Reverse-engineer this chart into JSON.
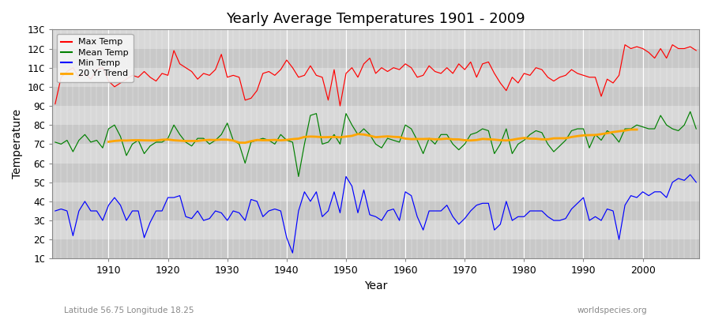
{
  "title": "Yearly Average Temperatures 1901 - 2009",
  "xlabel": "Year",
  "ylabel": "Temperature",
  "bottom_left": "Latitude 56.75 Longitude 18.25",
  "bottom_right": "worldspecies.org",
  "years": [
    1901,
    1902,
    1903,
    1904,
    1905,
    1906,
    1907,
    1908,
    1909,
    1910,
    1911,
    1912,
    1913,
    1914,
    1915,
    1916,
    1917,
    1918,
    1919,
    1920,
    1921,
    1922,
    1923,
    1924,
    1925,
    1926,
    1927,
    1928,
    1929,
    1930,
    1931,
    1932,
    1933,
    1934,
    1935,
    1936,
    1937,
    1938,
    1939,
    1940,
    1941,
    1942,
    1943,
    1944,
    1945,
    1946,
    1947,
    1948,
    1949,
    1950,
    1951,
    1952,
    1953,
    1954,
    1955,
    1956,
    1957,
    1958,
    1959,
    1960,
    1961,
    1962,
    1963,
    1964,
    1965,
    1966,
    1967,
    1968,
    1969,
    1970,
    1971,
    1972,
    1973,
    1974,
    1975,
    1976,
    1977,
    1978,
    1979,
    1980,
    1981,
    1982,
    1983,
    1984,
    1985,
    1986,
    1987,
    1988,
    1989,
    1990,
    1991,
    1992,
    1993,
    1994,
    1995,
    1996,
    1997,
    1998,
    1999,
    2000,
    2001,
    2002,
    2003,
    2004,
    2005,
    2006,
    2007,
    2008,
    2009
  ],
  "max_temp": [
    9.1,
    10.5,
    10.8,
    11.0,
    10.5,
    10.7,
    10.4,
    10.9,
    11.0,
    10.3,
    10.0,
    10.2,
    10.4,
    10.6,
    10.5,
    10.8,
    10.5,
    10.3,
    10.7,
    10.6,
    11.9,
    11.2,
    11.0,
    10.8,
    10.4,
    10.7,
    10.6,
    10.9,
    11.7,
    10.5,
    10.6,
    10.5,
    9.3,
    9.4,
    9.8,
    10.7,
    10.8,
    10.6,
    10.9,
    11.4,
    11.0,
    10.5,
    10.6,
    11.1,
    10.6,
    10.5,
    9.3,
    10.9,
    9.0,
    10.7,
    11.0,
    10.5,
    11.2,
    11.5,
    10.7,
    11.0,
    10.8,
    11.0,
    10.9,
    11.2,
    11.0,
    10.5,
    10.6,
    11.1,
    10.8,
    10.7,
    11.0,
    10.7,
    11.2,
    10.9,
    11.3,
    10.5,
    11.2,
    11.3,
    10.7,
    10.2,
    9.8,
    10.5,
    10.2,
    10.7,
    10.6,
    11.0,
    10.9,
    10.5,
    10.3,
    10.5,
    10.6,
    10.9,
    10.7,
    10.6,
    10.5,
    10.5,
    9.5,
    10.4,
    10.2,
    10.6,
    12.2,
    12.0,
    12.1,
    12.0,
    11.8,
    11.5,
    12.0,
    11.5,
    12.2,
    12.0,
    12.0,
    12.1,
    11.9
  ],
  "mean_temp": [
    7.1,
    7.0,
    7.2,
    6.6,
    7.2,
    7.5,
    7.1,
    7.2,
    6.8,
    7.8,
    8.0,
    7.4,
    6.4,
    7.0,
    7.2,
    6.5,
    6.9,
    7.1,
    7.1,
    7.3,
    8.0,
    7.5,
    7.1,
    6.9,
    7.3,
    7.3,
    7.0,
    7.2,
    7.5,
    8.1,
    7.2,
    7.0,
    6.0,
    7.1,
    7.2,
    7.3,
    7.2,
    7.0,
    7.5,
    7.2,
    7.1,
    5.3,
    7.0,
    8.5,
    8.6,
    7.0,
    7.1,
    7.5,
    7.0,
    8.6,
    8.0,
    7.5,
    7.8,
    7.5,
    7.0,
    6.8,
    7.3,
    7.2,
    7.1,
    8.0,
    7.8,
    7.2,
    6.5,
    7.3,
    7.0,
    7.5,
    7.5,
    7.0,
    6.7,
    7.0,
    7.5,
    7.6,
    7.8,
    7.7,
    6.5,
    7.0,
    7.8,
    6.5,
    7.0,
    7.2,
    7.5,
    7.7,
    7.6,
    7.0,
    6.6,
    6.9,
    7.2,
    7.7,
    7.8,
    7.8,
    6.8,
    7.5,
    7.2,
    7.7,
    7.5,
    7.1,
    7.8,
    7.8,
    8.0,
    7.9,
    7.8,
    7.8,
    8.5,
    8.0,
    7.8,
    7.7,
    8.0,
    8.7,
    7.8
  ],
  "min_temp": [
    3.5,
    3.6,
    3.5,
    2.2,
    3.5,
    4.0,
    3.5,
    3.5,
    3.0,
    3.8,
    4.2,
    3.8,
    3.0,
    3.5,
    3.5,
    2.1,
    2.9,
    3.5,
    3.5,
    4.2,
    4.2,
    4.3,
    3.2,
    3.1,
    3.5,
    3.0,
    3.1,
    3.5,
    3.4,
    3.0,
    3.5,
    3.4,
    3.0,
    4.1,
    4.0,
    3.2,
    3.5,
    3.6,
    3.5,
    2.1,
    1.3,
    3.5,
    4.5,
    4.0,
    4.5,
    3.2,
    3.5,
    4.5,
    3.4,
    5.3,
    4.8,
    3.4,
    4.6,
    3.3,
    3.2,
    3.0,
    3.5,
    3.6,
    3.0,
    4.5,
    4.3,
    3.2,
    2.5,
    3.5,
    3.5,
    3.5,
    3.8,
    3.2,
    2.8,
    3.1,
    3.5,
    3.8,
    3.9,
    3.9,
    2.5,
    2.8,
    4.0,
    3.0,
    3.2,
    3.2,
    3.5,
    3.5,
    3.5,
    3.2,
    3.0,
    3.0,
    3.1,
    3.6,
    3.9,
    4.2,
    3.0,
    3.2,
    3.0,
    3.6,
    3.5,
    2.0,
    3.8,
    4.3,
    4.2,
    4.5,
    4.3,
    4.5,
    4.5,
    4.2,
    5.0,
    5.2,
    5.1,
    5.4,
    5.0
  ],
  "max_color": "#ff0000",
  "mean_color": "#008000",
  "min_color": "#0000ff",
  "trend_color": "#ffa500",
  "band_light": "#d8d8d8",
  "band_dark": "#c8c8c8",
  "grid_color": "#ffffff",
  "ylim": [
    1,
    13
  ],
  "yticks": [
    1,
    2,
    3,
    4,
    5,
    6,
    7,
    8,
    9,
    10,
    11,
    12,
    13
  ],
  "ytick_labels": [
    "1C",
    "2C",
    "3C",
    "4C",
    "5C",
    "6C",
    "7C",
    "8C",
    "9C",
    "10C",
    "11C",
    "12C",
    "13C"
  ],
  "title_fontsize": 13,
  "axis_fontsize": 9,
  "legend_fontsize": 8,
  "trend_window": 20
}
